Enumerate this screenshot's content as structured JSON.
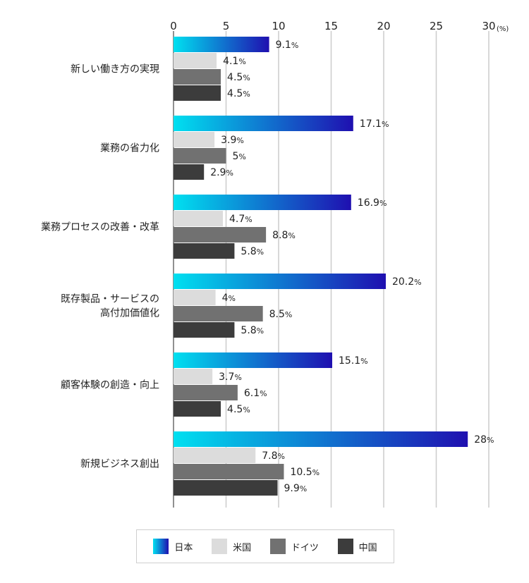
{
  "chart_data": {
    "type": "bar",
    "orientation": "horizontal",
    "categories": [
      [
        "新しい働き方の実現"
      ],
      [
        "業務の省力化"
      ],
      [
        "業務プロセスの改善・改革"
      ],
      [
        "既存製品・サービスの",
        "高付加価値化"
      ],
      [
        "顧客体験の創造・向上"
      ],
      [
        "新規ビジネス創出"
      ]
    ],
    "series": [
      {
        "name": "日本",
        "color": "#1a1ab5",
        "gradient": [
          "#00e0f0",
          "#1f0fb0"
        ],
        "values": [
          9.1,
          17.1,
          16.9,
          20.2,
          15.1,
          28
        ],
        "labels": [
          "9.1",
          "17.1",
          "16.9",
          "20.2",
          "15.1",
          "28"
        ]
      },
      {
        "name": "米国",
        "color": "#dcdcdc",
        "values": [
          4.1,
          3.9,
          4.7,
          4,
          3.7,
          7.8
        ],
        "labels": [
          "4.1",
          "3.9",
          "4.7",
          "4",
          "3.7",
          "7.8"
        ]
      },
      {
        "name": "ドイツ",
        "color": "#717171",
        "values": [
          4.5,
          5,
          8.8,
          8.5,
          6.1,
          10.5
        ],
        "labels": [
          "4.5",
          "5",
          "8.8",
          "8.5",
          "6.1",
          "10.5"
        ]
      },
      {
        "name": "中国",
        "color": "#3c3c3c",
        "values": [
          4.5,
          2.9,
          5.8,
          5.8,
          4.5,
          9.9
        ],
        "labels": [
          "4.5",
          "2.9",
          "5.8",
          "5.8",
          "4.5",
          "9.9"
        ]
      }
    ],
    "xticks": [
      "0",
      "5",
      "10",
      "15",
      "20",
      "25",
      "30"
    ],
    "xlim": [
      0,
      30
    ],
    "unit": "(%)",
    "label_suffix": "%",
    "grid": true,
    "legend_position": "bottom"
  }
}
